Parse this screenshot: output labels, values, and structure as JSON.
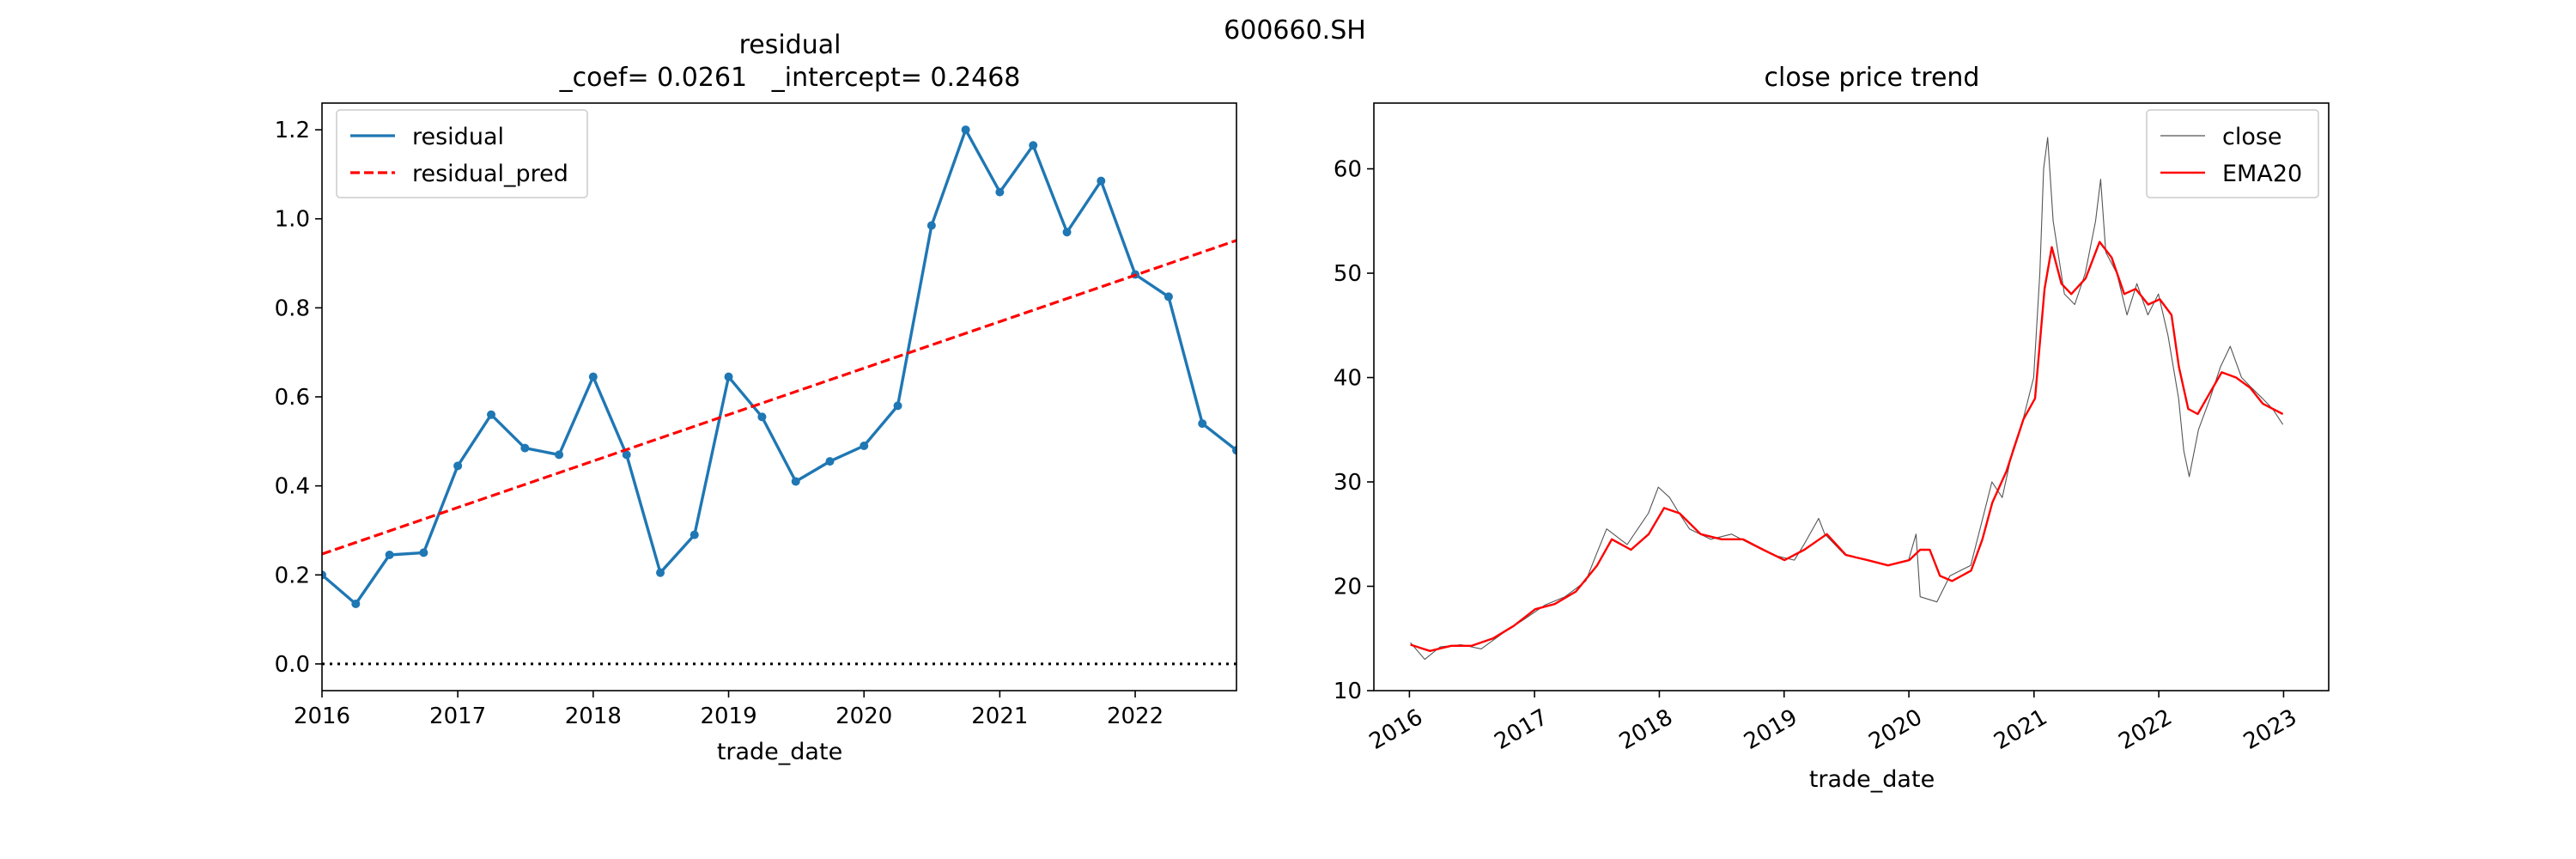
{
  "figure": {
    "suptitle": "600660.SH"
  },
  "chart_data": [
    {
      "type": "line",
      "title": "residual",
      "subtitle": "_coef= 0.0261   _intercept= 0.2468",
      "xlabel": "trade_date",
      "ylabel": "",
      "x_axis_type": "date",
      "xlim": [
        "2016-01-01",
        "2022-10-01"
      ],
      "ylim": [
        -0.06,
        1.26
      ],
      "x_ticks": [
        "2016",
        "2017",
        "2018",
        "2019",
        "2020",
        "2021",
        "2022"
      ],
      "y_ticks": [
        "0.0",
        "0.2",
        "0.4",
        "0.6",
        "0.8",
        "1.0",
        "1.2"
      ],
      "legend": "top-left",
      "grid": false,
      "series": [
        {
          "name": "residual",
          "style": "solid-with-markers",
          "color": "#1f77b4",
          "x": [
            "2016-01-01",
            "2016-04-01",
            "2016-07-01",
            "2016-10-01",
            "2017-01-01",
            "2017-04-01",
            "2017-07-01",
            "2017-10-01",
            "2018-01-01",
            "2018-04-01",
            "2018-07-01",
            "2018-10-01",
            "2019-01-01",
            "2019-04-01",
            "2019-07-01",
            "2019-10-01",
            "2020-01-01",
            "2020-04-01",
            "2020-07-01",
            "2020-10-01",
            "2021-01-01",
            "2021-04-01",
            "2021-07-01",
            "2021-10-01",
            "2022-01-01",
            "2022-04-01",
            "2022-07-01",
            "2022-10-01"
          ],
          "values": [
            0.2,
            0.135,
            0.245,
            0.25,
            0.445,
            0.56,
            0.485,
            0.47,
            0.645,
            0.47,
            0.205,
            0.29,
            0.645,
            0.555,
            0.41,
            0.455,
            0.49,
            0.58,
            0.985,
            1.2,
            1.06,
            1.165,
            0.97,
            1.085,
            0.875,
            0.825,
            0.54,
            0.48
          ]
        },
        {
          "name": "residual_pred",
          "style": "dashed",
          "color": "#ff0000",
          "x": [
            "2016-01-01",
            "2022-10-01"
          ],
          "values": [
            0.2468,
            0.9515
          ]
        }
      ],
      "reference_line": {
        "y": 0.0,
        "style": "dotted",
        "color": "#000000"
      }
    },
    {
      "type": "line",
      "title": "close price trend",
      "xlabel": "trade_date",
      "ylabel": "",
      "x_axis_type": "date",
      "xlim": [
        "2015-09-19",
        "2023-05-13"
      ],
      "ylim": [
        10,
        66.3
      ],
      "x_ticks": [
        "2016",
        "2017",
        "2018",
        "2019",
        "2020",
        "2021",
        "2022",
        "2023"
      ],
      "y_ticks": [
        "10",
        "20",
        "30",
        "40",
        "50",
        "60"
      ],
      "legend": "top-right",
      "grid": false,
      "series": [
        {
          "name": "close",
          "style": "thin",
          "color": "#555555",
          "x": [
            "2016-01-04",
            "2016-02-15",
            "2016-03-31",
            "2016-05-31",
            "2016-07-29",
            "2016-09-30",
            "2016-11-30",
            "2017-01-31",
            "2017-03-31",
            "2017-05-31",
            "2017-06-30",
            "2017-07-31",
            "2017-09-29",
            "2017-11-30",
            "2017-12-29",
            "2018-01-31",
            "2018-02-28",
            "2018-03-30",
            "2018-05-31",
            "2018-07-31",
            "2018-09-28",
            "2018-11-30",
            "2019-01-31",
            "2019-02-28",
            "2019-04-12",
            "2019-04-30",
            "2019-06-28",
            "2019-08-30",
            "2019-10-31",
            "2019-12-31",
            "2020-01-22",
            "2020-02-03",
            "2020-03-23",
            "2020-04-30",
            "2020-06-30",
            "2020-07-31",
            "2020-08-31",
            "2020-09-30",
            "2020-10-30",
            "2020-11-30",
            "2020-12-31",
            "2021-01-18",
            "2021-01-29",
            "2021-02-10",
            "2021-02-26",
            "2021-03-31",
            "2021-04-30",
            "2021-05-31",
            "2021-06-30",
            "2021-07-15",
            "2021-07-30",
            "2021-08-31",
            "2021-09-30",
            "2021-10-29",
            "2021-11-30",
            "2021-12-31",
            "2022-01-28",
            "2022-02-28",
            "2022-03-15",
            "2022-03-31",
            "2022-04-27",
            "2022-05-31",
            "2022-06-30",
            "2022-07-29",
            "2022-08-31",
            "2022-09-30",
            "2022-10-31",
            "2022-11-30",
            "2022-12-30"
          ],
          "values": [
            14.6,
            13.0,
            14.2,
            14.4,
            14.0,
            15.5,
            16.8,
            18.2,
            19.0,
            20.5,
            23.0,
            25.5,
            24.0,
            27.0,
            29.5,
            28.5,
            27.0,
            25.5,
            24.5,
            25.0,
            24.0,
            23.0,
            22.5,
            24.0,
            26.5,
            25.0,
            23.0,
            22.5,
            22.0,
            22.5,
            25.0,
            19.0,
            18.5,
            21.0,
            22.0,
            26.0,
            30.0,
            28.5,
            33.0,
            36.0,
            40.0,
            50.0,
            60.0,
            63.0,
            55.0,
            48.0,
            47.0,
            50.0,
            55.0,
            59.0,
            52.0,
            50.0,
            46.0,
            49.0,
            46.0,
            48.0,
            44.0,
            38.0,
            33.0,
            30.5,
            35.0,
            38.0,
            41.0,
            43.0,
            40.0,
            39.0,
            38.0,
            37.0,
            35.5
          ]
        },
        {
          "name": "EMA20",
          "style": "solid",
          "color": "#ff0000",
          "x": [
            "2016-01-04",
            "2016-03-01",
            "2016-05-02",
            "2016-07-01",
            "2016-09-01",
            "2016-11-01",
            "2017-01-03",
            "2017-03-01",
            "2017-05-02",
            "2017-07-03",
            "2017-08-15",
            "2017-10-10",
            "2017-12-01",
            "2018-01-15",
            "2018-03-01",
            "2018-05-02",
            "2018-07-02",
            "2018-09-03",
            "2018-11-01",
            "2019-01-02",
            "2019-03-01",
            "2019-05-06",
            "2019-07-01",
            "2019-09-02",
            "2019-11-01",
            "2020-01-02",
            "2020-02-03",
            "2020-03-02",
            "2020-04-01",
            "2020-05-06",
            "2020-07-01",
            "2020-08-03",
            "2020-09-01",
            "2020-10-12",
            "2020-12-01",
            "2021-01-04",
            "2021-02-01",
            "2021-02-22",
            "2021-03-22",
            "2021-04-20",
            "2021-06-01",
            "2021-07-12",
            "2021-08-16",
            "2021-09-22",
            "2021-10-25",
            "2021-12-01",
            "2022-01-04",
            "2022-02-07",
            "2022-03-01",
            "2022-03-28",
            "2022-04-25",
            "2022-05-30",
            "2022-07-04",
            "2022-08-15",
            "2022-09-26",
            "2022-11-01",
            "2022-12-30"
          ],
          "values": [
            14.4,
            13.8,
            14.3,
            14.3,
            15.0,
            16.2,
            17.8,
            18.3,
            19.5,
            22.0,
            24.5,
            23.5,
            25.0,
            27.5,
            27.0,
            25.0,
            24.5,
            24.5,
            23.5,
            22.5,
            23.5,
            25.0,
            23.0,
            22.5,
            22.0,
            22.5,
            23.5,
            23.5,
            21.0,
            20.5,
            21.5,
            24.5,
            28.0,
            31.0,
            36.0,
            38.0,
            48.5,
            52.5,
            49.0,
            48.0,
            49.5,
            53.0,
            51.5,
            48.0,
            48.5,
            47.0,
            47.5,
            46.0,
            41.0,
            37.0,
            36.5,
            38.5,
            40.5,
            40.0,
            39.0,
            37.5,
            36.5
          ]
        }
      ]
    }
  ]
}
